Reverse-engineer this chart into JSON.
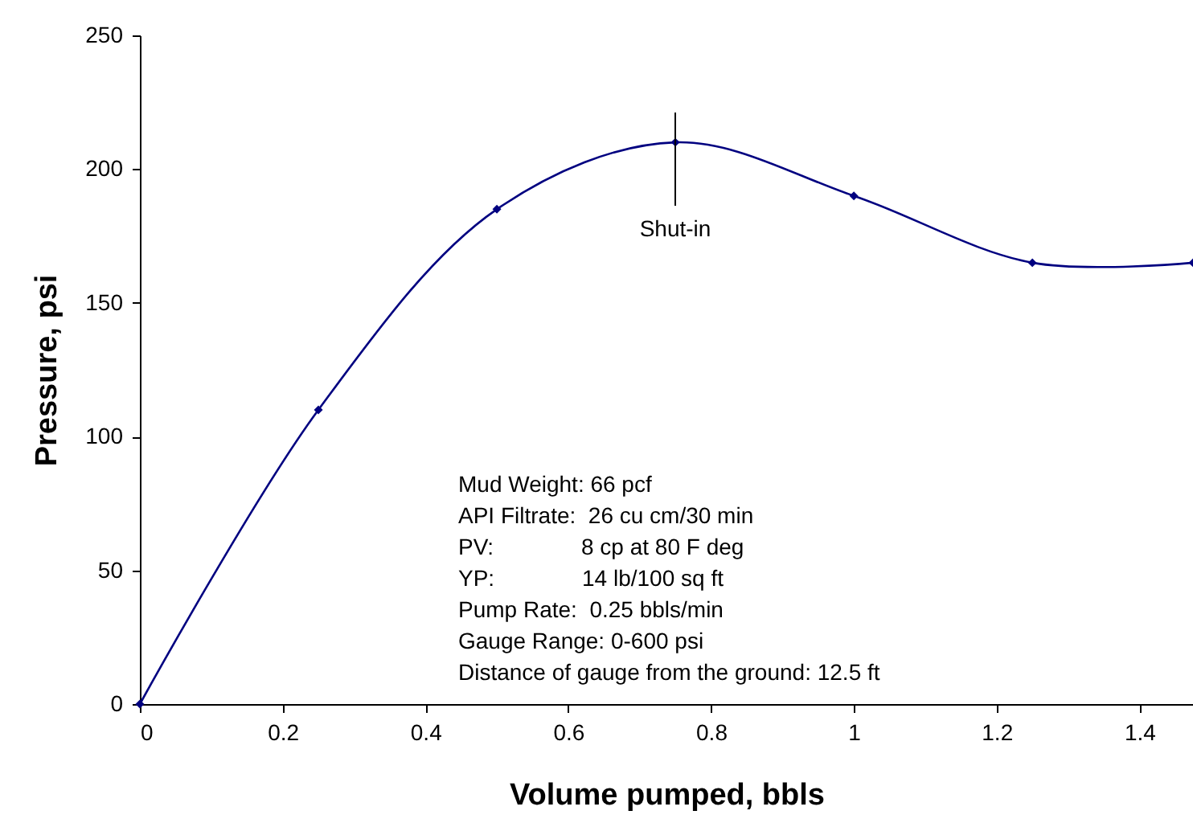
{
  "chart_data": {
    "type": "line",
    "xlabel": "Volume pumped, bbls",
    "ylabel": "Pressure, psi",
    "x": [
      0,
      0.25,
      0.5,
      0.75,
      1,
      1.25,
      1.475
    ],
    "series": [
      {
        "color": "#000080",
        "values": [
          0,
          110,
          185,
          210,
          190,
          165,
          165
        ]
      }
    ],
    "xlim": [
      0,
      1.475
    ],
    "xticks": [
      0,
      0.2,
      0.4,
      0.6,
      0.8,
      1,
      1.2,
      1.4
    ],
    "ylim": [
      0,
      250
    ],
    "yticks": [
      0,
      50,
      100,
      150,
      200,
      250
    ],
    "grid": false,
    "marker": "diamond",
    "line_style": "solid",
    "annotations": [
      "Shut-in",
      "Mud Weight: 66 pcf",
      "API Filtrate:  26 cu cm/30 min",
      "PV:              8 cp at 80 F deg",
      "YP:              14 lb/100 sq ft",
      "Pump Rate:  0.25 bbls/min",
      "Gauge Range: 0-600 psi",
      "Distance of gauge from the ground: 12.5 ft"
    ]
  }
}
